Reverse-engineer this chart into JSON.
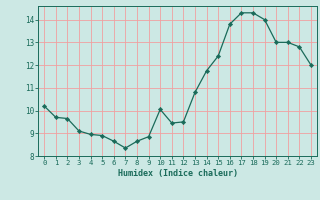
{
  "x": [
    0,
    1,
    2,
    3,
    4,
    5,
    6,
    7,
    8,
    9,
    10,
    11,
    12,
    13,
    14,
    15,
    16,
    17,
    18,
    19,
    20,
    21,
    22,
    23
  ],
  "y": [
    10.2,
    9.7,
    9.65,
    9.1,
    8.95,
    8.9,
    8.65,
    8.35,
    8.65,
    8.85,
    10.05,
    9.45,
    9.5,
    10.8,
    11.75,
    12.4,
    13.8,
    14.3,
    14.3,
    14.0,
    13.0,
    13.0,
    12.8,
    12.0
  ],
  "xlabel": "Humidex (Indice chaleur)",
  "xlim": [
    -0.5,
    23.5
  ],
  "ylim": [
    8,
    14.6
  ],
  "yticks": [
    8,
    9,
    10,
    11,
    12,
    13,
    14
  ],
  "xticks": [
    0,
    1,
    2,
    3,
    4,
    5,
    6,
    7,
    8,
    9,
    10,
    11,
    12,
    13,
    14,
    15,
    16,
    17,
    18,
    19,
    20,
    21,
    22,
    23
  ],
  "line_color": "#1a6b5a",
  "marker_color": "#1a6b5a",
  "bg_color": "#cce8e4",
  "grid_color": "#f0a0a0",
  "axes_color": "#1a6b5a",
  "label_fontsize": 6.0,
  "tick_fontsize": 5.2
}
